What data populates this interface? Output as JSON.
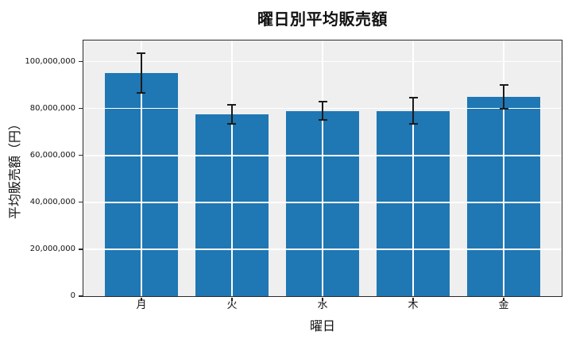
{
  "chart_data": {
    "type": "bar",
    "title": "曜日別平均販売額",
    "xlabel": "曜日",
    "ylabel": "平均販売額（円）",
    "categories": [
      "月",
      "火",
      "水",
      "木",
      "金"
    ],
    "values": [
      95000000,
      77500000,
      79000000,
      79000000,
      85000000
    ],
    "errors": [
      8500000,
      4000000,
      4000000,
      5500000,
      5000000
    ],
    "ylim": [
      0,
      109000000
    ],
    "yticks": [
      {
        "value": 0,
        "label": "0"
      },
      {
        "value": 20000000,
        "label": "20,000,000"
      },
      {
        "value": 40000000,
        "label": "40,000,000"
      },
      {
        "value": 60000000,
        "label": "60,000,000"
      },
      {
        "value": 80000000,
        "label": "80,000,000"
      },
      {
        "value": 100000000,
        "label": "100,000,000"
      }
    ],
    "grid": "both-white-over-bars",
    "legend": "none",
    "colors": {
      "bar": "#1f77b4",
      "error": "#1c1c1c",
      "plot_background": "#efefef",
      "gridline": "#ffffff",
      "spine": "#2b2b2b",
      "figure_background": "#ffffff",
      "text": "#111111"
    }
  }
}
